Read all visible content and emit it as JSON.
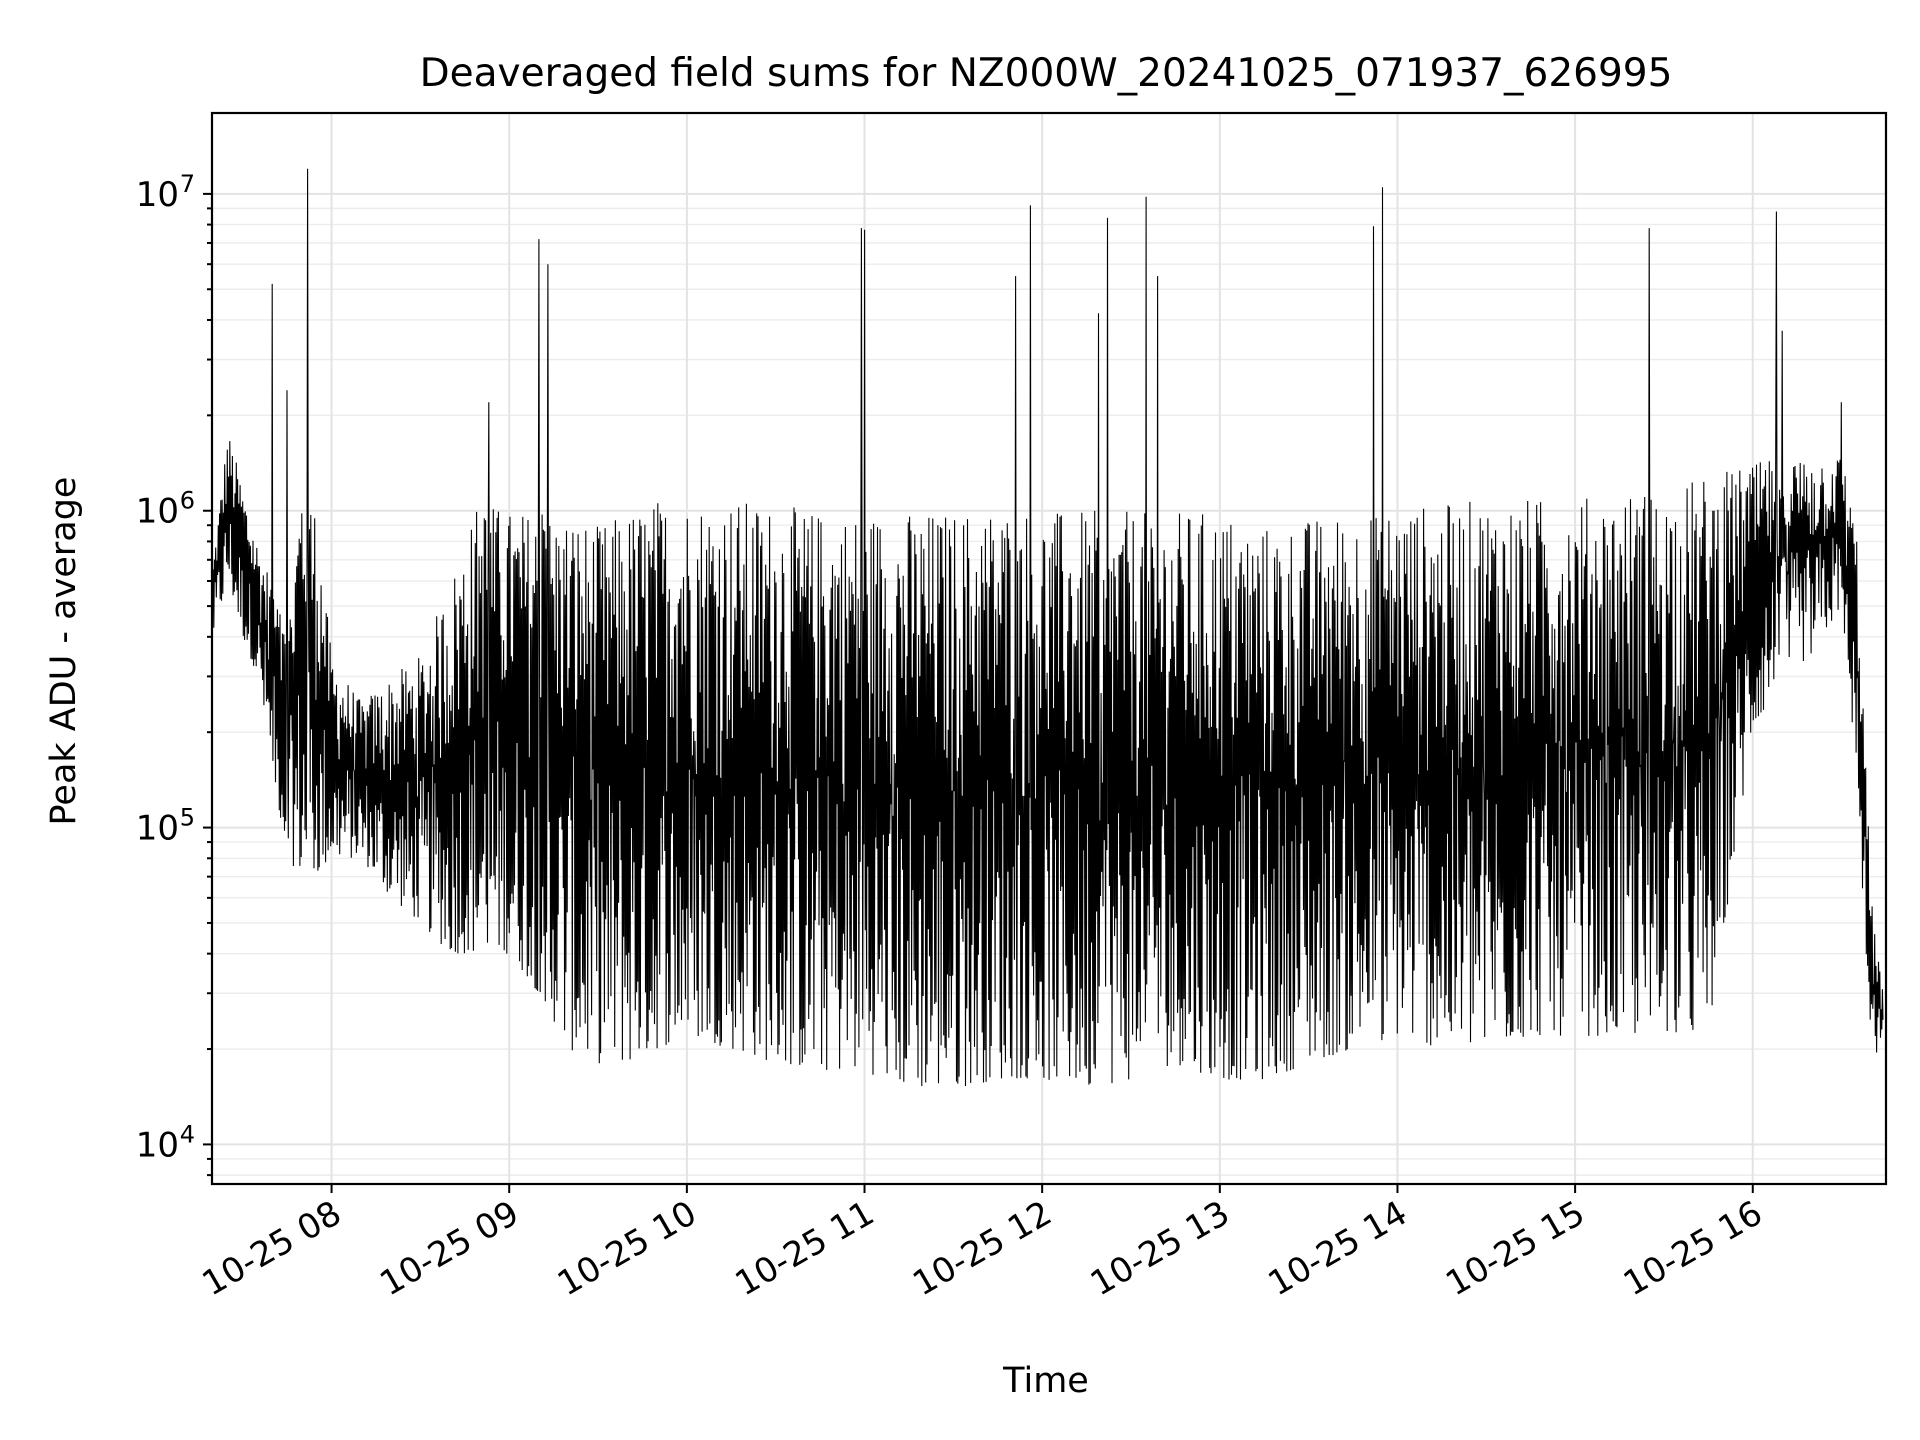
{
  "chart_data": {
    "type": "line",
    "title": "Deaveraged field sums for NZ000W_20241025_071937_626995",
    "xlabel": "Time",
    "ylabel": "Peak ADU - average",
    "yscale": "log",
    "ylim": [
      7500,
      18000000
    ],
    "xlim": [
      "2024-10-25 07:19:37",
      "2024-10-25 16:45:00"
    ],
    "grid": true,
    "legend": "none",
    "line_color": "#000000",
    "x_ticks": [
      {
        "value": "2024-10-25 08:00",
        "label": "10-25 08"
      },
      {
        "value": "2024-10-25 09:00",
        "label": "10-25 09"
      },
      {
        "value": "2024-10-25 10:00",
        "label": "10-25 10"
      },
      {
        "value": "2024-10-25 11:00",
        "label": "10-25 11"
      },
      {
        "value": "2024-10-25 12:00",
        "label": "10-25 12"
      },
      {
        "value": "2024-10-25 13:00",
        "label": "10-25 13"
      },
      {
        "value": "2024-10-25 14:00",
        "label": "10-25 14"
      },
      {
        "value": "2024-10-25 15:00",
        "label": "10-25 15"
      },
      {
        "value": "2024-10-25 16:00",
        "label": "10-25 16"
      }
    ],
    "y_ticks": [
      {
        "value": 10000,
        "base": "10",
        "exp": "4"
      },
      {
        "value": 100000,
        "base": "10",
        "exp": "5"
      },
      {
        "value": 1000000,
        "base": "10",
        "exp": "6"
      },
      {
        "value": 10000000,
        "base": "10",
        "exp": "7"
      }
    ],
    "series": [
      {
        "x": [
          "2024-10-25 07:20",
          "2024-10-25 07:25",
          "2024-10-25 07:30",
          "2024-10-25 07:35",
          "2024-10-25 07:40",
          "2024-10-25 07:45",
          "2024-10-25 07:50",
          "2024-10-25 07:55",
          "2024-10-25 08:00",
          "2024-10-25 08:10",
          "2024-10-25 08:20",
          "2024-10-25 08:30",
          "2024-10-25 08:40",
          "2024-10-25 08:50",
          "2024-10-25 09:00",
          "2024-10-25 09:10",
          "2024-10-25 09:20",
          "2024-10-25 09:30",
          "2024-10-25 09:40",
          "2024-10-25 09:50",
          "2024-10-25 10:00",
          "2024-10-25 10:15",
          "2024-10-25 10:30",
          "2024-10-25 10:45",
          "2024-10-25 11:00",
          "2024-10-25 11:15",
          "2024-10-25 11:30",
          "2024-10-25 11:45",
          "2024-10-25 12:00",
          "2024-10-25 12:15",
          "2024-10-25 12:30",
          "2024-10-25 12:45",
          "2024-10-25 13:00",
          "2024-10-25 13:15",
          "2024-10-25 13:30",
          "2024-10-25 13:45",
          "2024-10-25 14:00",
          "2024-10-25 14:15",
          "2024-10-25 14:30",
          "2024-10-25 14:45",
          "2024-10-25 15:00",
          "2024-10-25 15:15",
          "2024-10-25 15:30",
          "2024-10-25 15:45",
          "2024-10-25 16:00",
          "2024-10-25 16:10",
          "2024-10-25 16:20",
          "2024-10-25 16:30",
          "2024-10-25 16:35",
          "2024-10-25 16:40",
          "2024-10-25 16:44"
        ],
        "y_high": [
          700000,
          1800000,
          1200000,
          800000,
          600000,
          400000,
          1400000,
          1000000,
          350000,
          250000,
          300000,
          350000,
          600000,
          1100000,
          1000000,
          1000000,
          1000000,
          900000,
          1000000,
          1100000,
          1100000,
          1100000,
          1050000,
          1000000,
          1000000,
          1000000,
          1000000,
          1050000,
          1000000,
          1000000,
          1000000,
          1000000,
          1000000,
          900000,
          950000,
          1000000,
          1050000,
          1050000,
          1100000,
          1100000,
          1100000,
          1150000,
          1200000,
          1300000,
          1400000,
          1500000,
          1500000,
          1500000,
          900000,
          60000,
          30000
        ],
        "y_low": [
          400000,
          600000,
          400000,
          300000,
          150000,
          80000,
          70000,
          70000,
          80000,
          80000,
          60000,
          50000,
          40000,
          40000,
          40000,
          30000,
          20000,
          18000,
          18000,
          20000,
          22000,
          20000,
          18000,
          17000,
          17000,
          15000,
          15000,
          16000,
          16000,
          15000,
          16000,
          18000,
          16000,
          16000,
          18000,
          20000,
          22000,
          20000,
          20000,
          22000,
          22000,
          22000,
          22000,
          22000,
          200000,
          300000,
          350000,
          500000,
          150000,
          18000,
          20000
        ],
        "spikes": [
          {
            "x": "2024-10-25 07:40",
            "y": 5200000
          },
          {
            "x": "2024-10-25 07:52",
            "y": 12000000
          },
          {
            "x": "2024-10-25 07:45",
            "y": 2400000
          },
          {
            "x": "2024-10-25 08:53",
            "y": 2200000
          },
          {
            "x": "2024-10-25 09:10",
            "y": 7200000
          },
          {
            "x": "2024-10-25 09:13",
            "y": 6000000
          },
          {
            "x": "2024-10-25 10:59",
            "y": 7800000
          },
          {
            "x": "2024-10-25 11:00",
            "y": 7700000
          },
          {
            "x": "2024-10-25 11:51",
            "y": 5500000
          },
          {
            "x": "2024-10-25 11:56",
            "y": 9200000
          },
          {
            "x": "2024-10-25 12:19",
            "y": 4200000
          },
          {
            "x": "2024-10-25 12:22",
            "y": 8400000
          },
          {
            "x": "2024-10-25 12:35",
            "y": 9800000
          },
          {
            "x": "2024-10-25 12:39",
            "y": 5500000
          },
          {
            "x": "2024-10-25 13:52",
            "y": 7900000
          },
          {
            "x": "2024-10-25 13:55",
            "y": 10500000
          },
          {
            "x": "2024-10-25 15:25",
            "y": 7800000
          },
          {
            "x": "2024-10-25 16:08",
            "y": 8800000
          },
          {
            "x": "2024-10-25 16:10",
            "y": 3700000
          },
          {
            "x": "2024-10-25 16:30",
            "y": 2200000
          }
        ]
      }
    ]
  }
}
